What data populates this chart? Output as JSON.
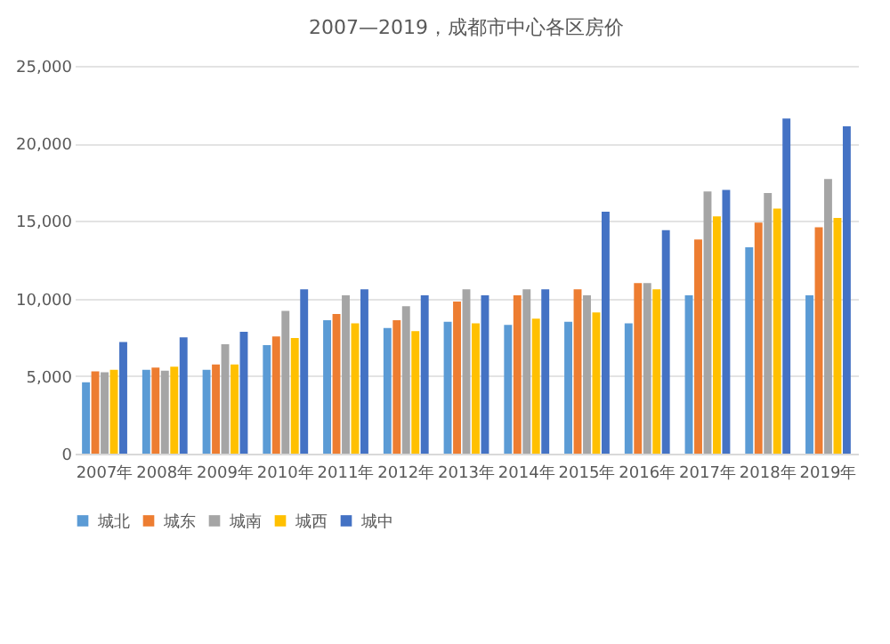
{
  "chart_data": {
    "type": "bar",
    "title": "2007—2019，成都市中心各区房价",
    "categories": [
      "2007年",
      "2008年",
      "2009年",
      "2010年",
      "2011年",
      "2012年",
      "2013年",
      "2014年",
      "2015年",
      "2016年",
      "2017年",
      "2018年",
      "2019年"
    ],
    "series": [
      {
        "name": "城北",
        "color": "#5b9bd5",
        "values": [
          4600,
          5400,
          5400,
          7000,
          8600,
          8100,
          8500,
          8300,
          8500,
          8400,
          10200,
          13300,
          10200
        ]
      },
      {
        "name": "城东",
        "color": "#ed7d31",
        "values": [
          5300,
          5550,
          5750,
          7550,
          9000,
          8600,
          9800,
          10200,
          10600,
          11000,
          13800,
          14900,
          14600
        ]
      },
      {
        "name": "城南",
        "color": "#a5a5a5",
        "values": [
          5250,
          5350,
          7050,
          9200,
          10200,
          9500,
          10600,
          10600,
          10200,
          11000,
          16900,
          16800,
          17700
        ]
      },
      {
        "name": "城西",
        "color": "#ffc000",
        "values": [
          5400,
          5600,
          5750,
          7450,
          8400,
          7900,
          8400,
          8700,
          9100,
          10600,
          15300,
          15800,
          15200
        ]
      },
      {
        "name": "城中",
        "color": "#4472c4",
        "values": [
          7200,
          7500,
          7850,
          10600,
          10600,
          10200,
          10200,
          10600,
          15600,
          14400,
          17000,
          21600,
          21100
        ]
      }
    ],
    "ylim": [
      0,
      25000
    ],
    "yticks": [
      0,
      {
        "value": 5000,
        "label": "5,000"
      },
      {
        "value": 10000,
        "label": "10,000"
      },
      {
        "value": 15000,
        "label": "15,000"
      },
      {
        "value": 20000,
        "label": "20,000"
      },
      {
        "value": 25000,
        "label": "25,000"
      }
    ],
    "grid": "y",
    "legend": "bottom"
  }
}
